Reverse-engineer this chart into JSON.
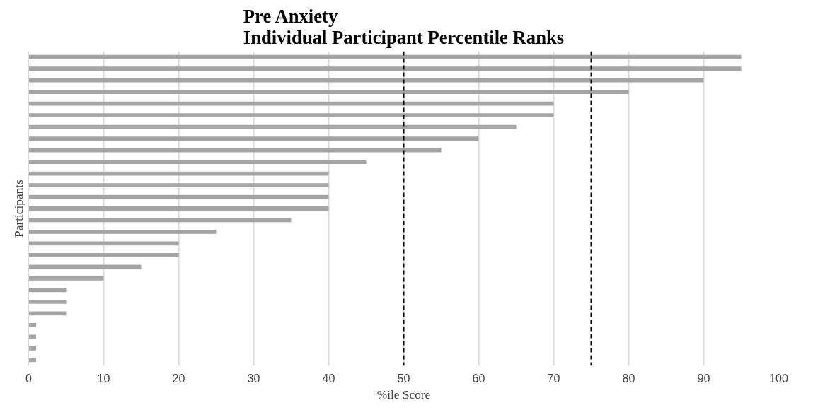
{
  "chart_data": {
    "type": "bar",
    "orientation": "horizontal",
    "title": "Pre Anxiety\nIndividual Participant Percentile Ranks",
    "xlabel": "%ile Score",
    "ylabel": "Participants",
    "categories": [
      null,
      null,
      null,
      null,
      null,
      null,
      null,
      null,
      null,
      null,
      null,
      null,
      null,
      null,
      null,
      null,
      null,
      null,
      null,
      null,
      null,
      null,
      null,
      null,
      null,
      null,
      null
    ],
    "values": [
      95,
      95,
      90,
      80,
      70,
      70,
      65,
      60,
      55,
      45,
      40,
      40,
      40,
      40,
      35,
      25,
      20,
      20,
      15,
      10,
      5,
      5,
      5,
      1,
      1,
      1,
      1
    ],
    "color": "#a5a5a5",
    "xlim": [
      0,
      100
    ],
    "xticks": [
      0,
      10,
      20,
      30,
      40,
      50,
      60,
      70,
      80,
      90,
      100
    ],
    "grid": "x",
    "tick_labels": "x",
    "ref_lines": [
      {
        "axis": "x",
        "value": 50,
        "color": "#000000",
        "line_style": "dashed"
      },
      {
        "axis": "x",
        "value": 75,
        "color": "#000000",
        "line_style": "dashed"
      }
    ]
  }
}
